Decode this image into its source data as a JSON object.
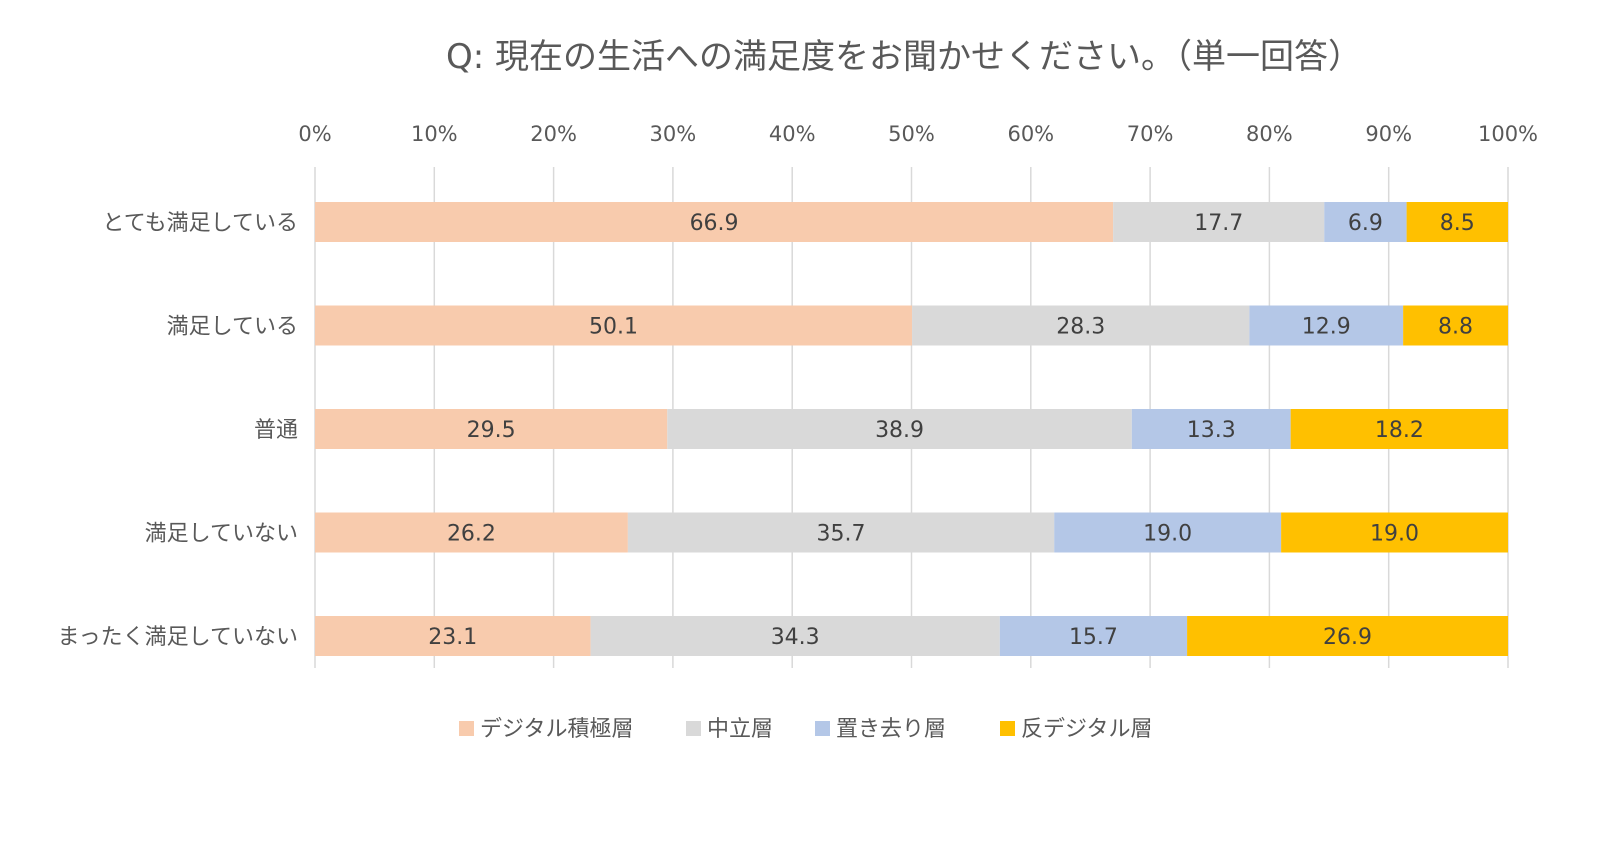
{
  "chart_data": {
    "type": "bar",
    "orientation": "horizontal",
    "stacked": "percent",
    "title": "Q: 現在の生活への満足度をお聞かせください。（単一回答）",
    "categories": [
      "とても満足している",
      "満足している",
      "普通",
      "満足していない",
      "まったく満足していない"
    ],
    "series": [
      {
        "name": "デジタル積極層",
        "color": "#F8CBAD",
        "values": [
          66.9,
          50.1,
          29.5,
          26.2,
          23.1
        ]
      },
      {
        "name": "中立層",
        "color": "#D9D9D9",
        "values": [
          17.7,
          28.3,
          38.9,
          35.7,
          34.3
        ]
      },
      {
        "name": "置き去り層",
        "color": "#B4C7E7",
        "values": [
          6.9,
          12.9,
          13.3,
          19.0,
          15.7
        ]
      },
      {
        "name": "反デジタル層",
        "color": "#FFC000",
        "values": [
          8.5,
          8.8,
          18.2,
          19.0,
          26.9
        ]
      }
    ],
    "xlim": [
      0,
      100
    ],
    "xticks": [
      "0%",
      "10%",
      "20%",
      "30%",
      "40%",
      "50%",
      "60%",
      "70%",
      "80%",
      "90%",
      "100%"
    ],
    "x_axis_position": "top",
    "grid": true,
    "legend": "bottom",
    "data_labels": true
  }
}
